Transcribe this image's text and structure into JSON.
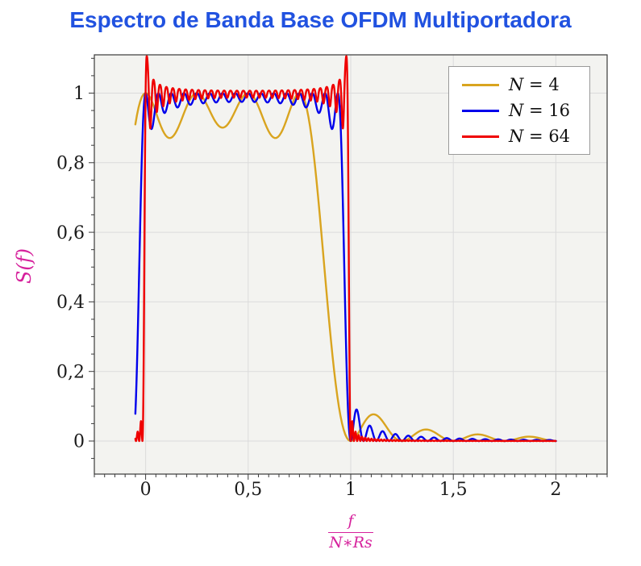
{
  "page": {
    "background": "#FFFFFF"
  },
  "chart_data": {
    "type": "line",
    "title": "Espectro de Banda Base OFDM Multiportadora",
    "title_color": "#2152E0",
    "ylabel": "S(f)",
    "xlabel_numerator": "f",
    "xlabel_denominator": "N∗Rs",
    "axis_label_color": "#D6219C",
    "xlim": [
      -0.25,
      2.25
    ],
    "ylim": [
      -0.095,
      1.11
    ],
    "xticks": [
      0,
      0.5,
      1,
      1.5,
      2
    ],
    "xtick_labels": [
      "0",
      "0,5",
      "1",
      "1,5",
      "2"
    ],
    "yticks": [
      0,
      0.2,
      0.4,
      0.6,
      0.8,
      1
    ],
    "ytick_labels": [
      "0",
      "0,2",
      "0,4",
      "0,6",
      "0,8",
      "1"
    ],
    "x_minor_step": 0.05,
    "y_minor_step": 0.05,
    "grid": true,
    "plot_background": "#F3F3F0",
    "grid_color": "#DBDBDB",
    "frame_color": "#3A3A3A",
    "tick_label_color": "#1A1A1A",
    "legend": {
      "position": "top-right",
      "entries": [
        "N = 4",
        "N = 16",
        "N = 64"
      ]
    },
    "series": [
      {
        "label": "N = 4",
        "N": 4,
        "color": "#D9A41F",
        "x_start": -0.05,
        "x_end": 2.0,
        "gibbs_edge": false
      },
      {
        "label": "N = 16",
        "N": 16,
        "color": "#0000EB",
        "x_start": -0.05,
        "x_end": 2.0,
        "gibbs_edge": false
      },
      {
        "label": "N = 64",
        "N": 64,
        "color": "#EF0000",
        "x_start": -0.05,
        "x_end": 2.0,
        "gibbs_edge": true
      }
    ],
    "samples_per_carrier": 32,
    "model": "S(u) = sum_{k=0}^{N-1} sinc^2(N*u - k): flat near 1 over 0<=u<=1 with ripples (dips about 0.87-0.9 for N=4, 0.9-0.97 for N=16), sinc^2 sidelobes decaying beyond u=1 (first lobe ~0.075 for N=4); N=64 shows sharp edges with Gibbs-like overshoot to ~1.06 at u near 0 and 1"
  }
}
